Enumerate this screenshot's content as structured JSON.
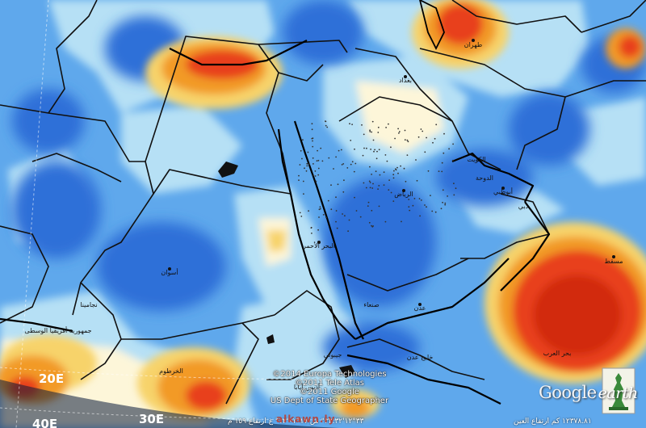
{
  "map": {
    "colors": {
      "ocean_pale": "#d9f0fb",
      "light_blue": "#b6e0f5",
      "mid_blue": "#5fa8ec",
      "deep_blue": "#2f6fd8",
      "cream": "#fdf6d9",
      "yellow": "#f7d36a",
      "orange": "#f29a25",
      "red": "#e8401c",
      "borders": "#111111"
    },
    "latitude_labels": [
      "20E",
      "30E",
      "40E"
    ],
    "place_labels": [
      "البحر الأحمر",
      "أسوان",
      "الخرطوم",
      "أبوظبي",
      "مسقط",
      "بحر العرب",
      "عدن",
      "جيبوتي",
      "بغداد",
      "طهران",
      "الرياض",
      "صنعاء",
      "أديس أبابا",
      "نجامينا",
      "خليج عدن",
      "الكويت",
      "الدوحة",
      "دبي",
      "جمهورية أفريقيا الوسطى"
    ]
  },
  "copyright": [
    "©2014 Europa Technologies",
    "©2011 Tele Atlas",
    "©2011 Google",
    "US Dept of State Geographer"
  ],
  "logo": {
    "google": "Google",
    "earth": "earth"
  },
  "status": {
    "left": "٣٣°١٢'٣٣.٣٢\" ش  ١٧°٠١'١٢\" غ  ارتفاع ١٥٩ م",
    "right": "١٢٣٧٨.٨١ كم  ارتفاع العين"
  },
  "watermark": "alkawn.ly"
}
